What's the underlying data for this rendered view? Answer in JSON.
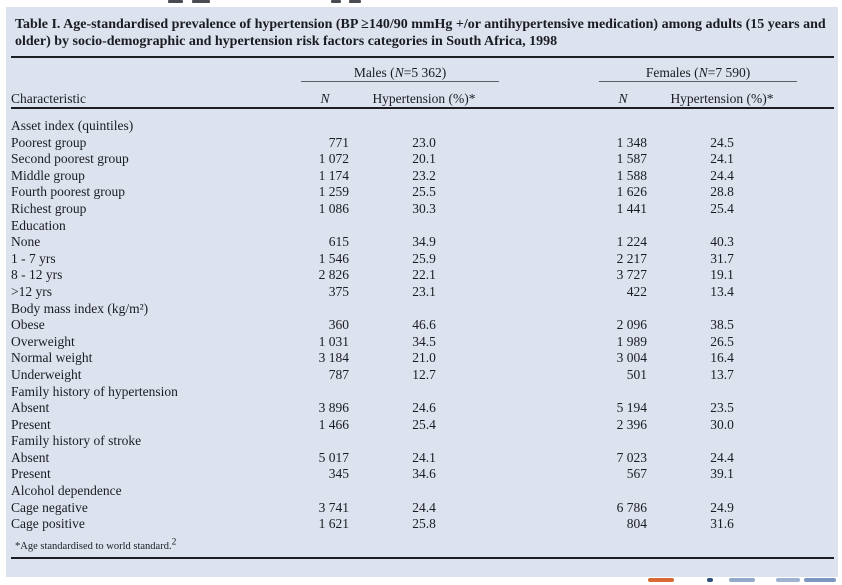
{
  "page": {
    "background": "#ffffff",
    "panel_bg": "#dce3ee",
    "text_color": "#1b1b22",
    "rule_color": "#1d1d24",
    "spanner_rule_color": "#5c5d66"
  },
  "table": {
    "title": "Table I. Age-standardised prevalence of hypertension (BP ≥140/90 mmHg +/or antihypertensive medication) among adults (15 years and older) by  socio-demographic and hypertension risk factors categories in South Africa, 1998",
    "characteristic_header": "Characteristic",
    "col_groups": [
      {
        "prefix": "Males (",
        "n": "N",
        "suffix": "=5 362)"
      },
      {
        "prefix": "Females (",
        "n": "N",
        "suffix": "=7 590)"
      }
    ],
    "sub_headers": {
      "n": "N",
      "pct": "Hypertension (%)*"
    },
    "sections": [
      {
        "label": "Asset index (quintiles)",
        "rows": [
          {
            "label": "Poorest group",
            "m_n": "771",
            "m_pct": "23.0",
            "f_n": "1 348",
            "f_pct": "24.5"
          },
          {
            "label": "Second poorest group",
            "m_n": "1 072",
            "m_pct": "20.1",
            "f_n": "1 587",
            "f_pct": "24.1"
          },
          {
            "label": "Middle group",
            "m_n": "1 174",
            "m_pct": "23.2",
            "f_n": "1 588",
            "f_pct": "24.4"
          },
          {
            "label": "Fourth poorest group",
            "m_n": "1 259",
            "m_pct": "25.5",
            "f_n": "1 626",
            "f_pct": "28.8"
          },
          {
            "label": "Richest group",
            "m_n": "1 086",
            "m_pct": "30.3",
            "f_n": "1 441",
            "f_pct": "25.4"
          }
        ]
      },
      {
        "label": "Education",
        "rows": [
          {
            "label": "None",
            "m_n": "615",
            "m_pct": "34.9",
            "f_n": "1 224",
            "f_pct": "40.3"
          },
          {
            "label": "1 - 7 yrs",
            "m_n": "1 546",
            "m_pct": "25.9",
            "f_n": "2 217",
            "f_pct": "31.7"
          },
          {
            "label": "8 - 12 yrs",
            "m_n": "2 826",
            "m_pct": "22.1",
            "f_n": "3 727",
            "f_pct": "19.1"
          },
          {
            "label": ">12 yrs",
            "m_n": "375",
            "m_pct": "23.1",
            "f_n": "422",
            "f_pct": "13.4"
          }
        ]
      },
      {
        "label": "Body mass index (kg/m²)",
        "rows": [
          {
            "label": "Obese",
            "m_n": "360",
            "m_pct": "46.6",
            "f_n": "2 096",
            "f_pct": "38.5"
          },
          {
            "label": "Overweight",
            "m_n": "1 031",
            "m_pct": "34.5",
            "f_n": "1 989",
            "f_pct": "26.5"
          },
          {
            "label": "Normal weight",
            "m_n": "3 184",
            "m_pct": "21.0",
            "f_n": "3 004",
            "f_pct": "16.4"
          },
          {
            "label": "Underweight",
            "m_n": "787",
            "m_pct": "12.7",
            "f_n": "501",
            "f_pct": "13.7"
          }
        ]
      },
      {
        "label": "Family history of hypertension",
        "rows": [
          {
            "label": "Absent",
            "m_n": "3 896",
            "m_pct": "24.6",
            "f_n": "5 194",
            "f_pct": "23.5"
          },
          {
            "label": "Present",
            "m_n": "1 466",
            "m_pct": "25.4",
            "f_n": "2 396",
            "f_pct": "30.0"
          }
        ]
      },
      {
        "label": "Family history of stroke",
        "rows": [
          {
            "label": "Absent",
            "m_n": "5 017",
            "m_pct": "24.1",
            "f_n": "7 023",
            "f_pct": "24.4"
          },
          {
            "label": "Present",
            "m_n": "345",
            "m_pct": "34.6",
            "f_n": "567",
            "f_pct": "39.1"
          }
        ]
      },
      {
        "label": "Alcohol dependence",
        "rows": [
          {
            "label": "Cage negative",
            "m_n": "3 741",
            "m_pct": "24.4",
            "f_n": "6 786",
            "f_pct": "24.9"
          },
          {
            "label": "Cage positive",
            "m_n": "1 621",
            "m_pct": "25.8",
            "f_n": "804",
            "f_pct": "31.6"
          }
        ]
      }
    ],
    "footnote": {
      "text": "*Age standardised to world standard.",
      "ref": "2"
    }
  }
}
